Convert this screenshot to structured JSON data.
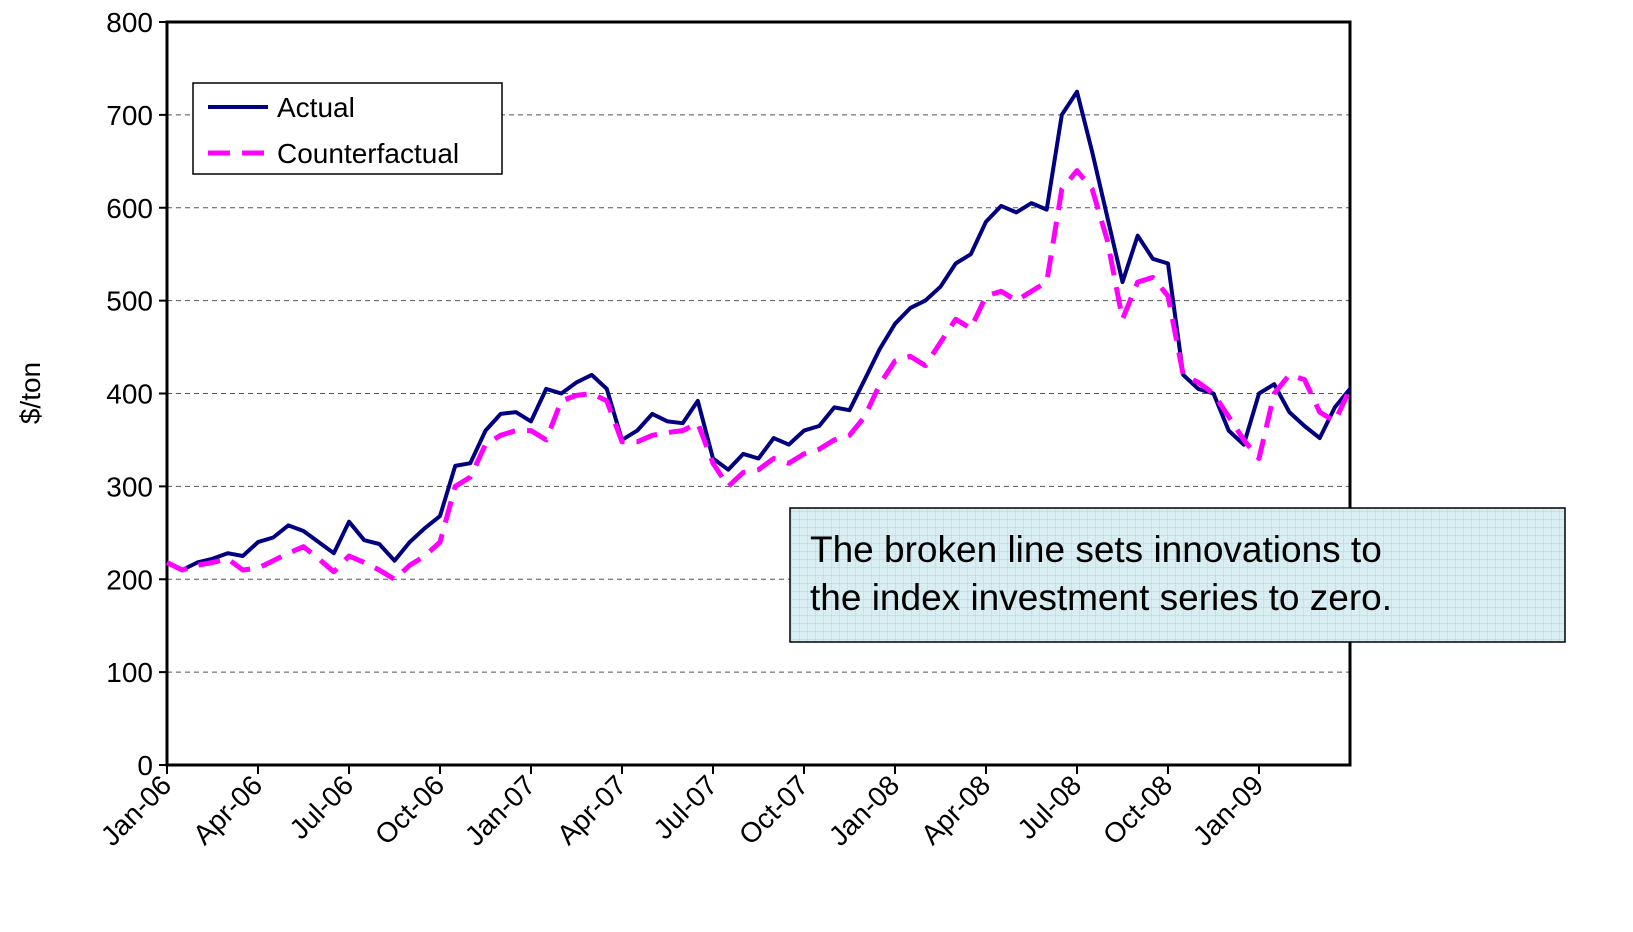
{
  "chart_data": {
    "type": "line",
    "y_label": "$/ton",
    "annotation": [
      "The broken line sets innovations to",
      "the index investment series to zero."
    ],
    "categories": [
      "Jan-06",
      null,
      null,
      null,
      null,
      null,
      "Apr-06",
      null,
      null,
      null,
      null,
      null,
      "Jul-06",
      null,
      null,
      null,
      null,
      null,
      "Oct-06",
      null,
      null,
      null,
      null,
      null,
      "Jan-07",
      null,
      null,
      null,
      null,
      null,
      "Apr-07",
      null,
      null,
      null,
      null,
      null,
      "Jul-07",
      null,
      null,
      null,
      null,
      null,
      "Oct-07",
      null,
      null,
      null,
      null,
      null,
      "Jan-08",
      null,
      null,
      null,
      null,
      null,
      "Apr-08",
      null,
      null,
      null,
      null,
      null,
      "Jul-08",
      null,
      null,
      null,
      null,
      null,
      "Oct-08",
      null,
      null,
      null,
      null,
      null,
      "Jan-09",
      null,
      null,
      null,
      null,
      null,
      null
    ],
    "series": [
      {
        "name": "Actual",
        "color": "#000080",
        "dashed": false,
        "values": [
          218,
          210,
          218,
          222,
          228,
          225,
          240,
          245,
          258,
          252,
          240,
          228,
          262,
          242,
          238,
          220,
          240,
          255,
          268,
          322,
          325,
          360,
          378,
          380,
          370,
          405,
          400,
          412,
          420,
          405,
          350,
          360,
          378,
          370,
          368,
          392,
          330,
          318,
          335,
          330,
          352,
          345,
          360,
          365,
          385,
          382,
          415,
          448,
          475,
          492,
          500,
          515,
          540,
          550,
          585,
          602,
          595,
          605,
          598,
          700,
          725,
          660,
          590,
          520,
          570,
          545,
          540,
          420,
          405,
          400,
          360,
          345,
          400,
          410,
          380,
          365,
          352,
          385,
          405
        ]
      },
      {
        "name": "Counterfactual",
        "color": "#ff00ff",
        "dashed": true,
        "values": [
          218,
          210,
          215,
          218,
          222,
          210,
          212,
          220,
          228,
          235,
          222,
          208,
          225,
          218,
          210,
          200,
          215,
          225,
          240,
          300,
          310,
          345,
          355,
          360,
          360,
          350,
          392,
          398,
          400,
          392,
          348,
          348,
          355,
          358,
          360,
          368,
          325,
          300,
          315,
          318,
          330,
          325,
          335,
          340,
          350,
          355,
          375,
          410,
          435,
          440,
          430,
          455,
          480,
          470,
          505,
          510,
          500,
          510,
          520,
          620,
          640,
          620,
          565,
          480,
          520,
          525,
          505,
          420,
          412,
          400,
          375,
          350,
          330,
          400,
          420,
          415,
          380,
          370,
          405
        ]
      }
    ],
    "ylim": [
      0,
      800
    ],
    "yticks": [
      0,
      100,
      200,
      300,
      400,
      500,
      600,
      700,
      800
    ],
    "grid": true,
    "legend": "top-left"
  }
}
